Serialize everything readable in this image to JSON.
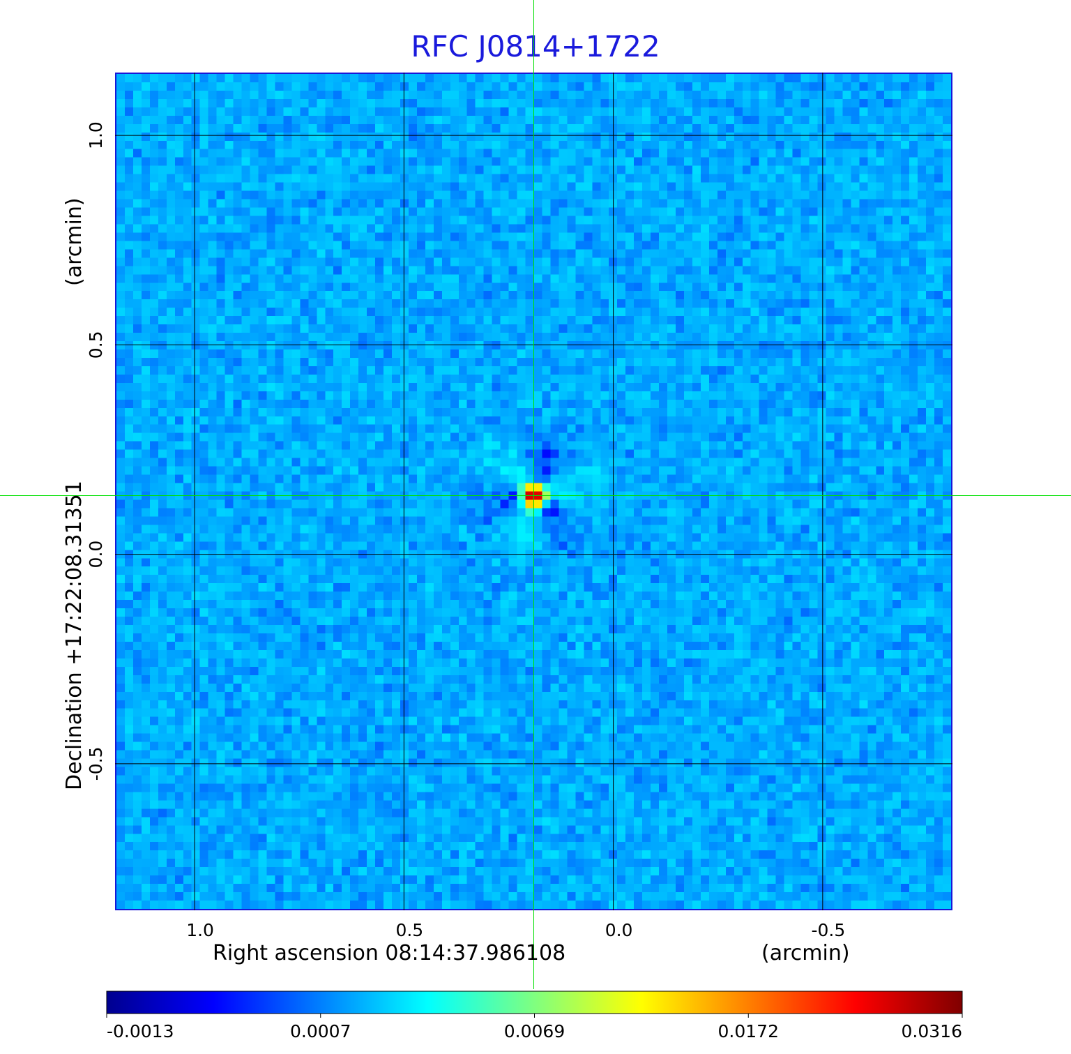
{
  "title": "RFC J0814+1722",
  "colors": {
    "title": "#1a1adc",
    "frame": "#1717d8",
    "grid": "#000000",
    "crosshair": "#00e000"
  },
  "colormap": "jet",
  "chart_data": {
    "type": "heatmap",
    "title": "RFC J0814+1722",
    "xlabel": "Right ascension  08:14:37.986108",
    "xunit": "(arcmin)",
    "ylabel": "Declination  +17:22:08.31351",
    "yunit": "(arcmin)",
    "x_range": [
      1.19,
      -0.81
    ],
    "y_range": [
      -0.85,
      1.15
    ],
    "x_ticks": [
      1.0,
      0.5,
      0.0,
      -0.5
    ],
    "x_tick_labels": [
      "1.0",
      "0.5",
      "0.0",
      "-0.5"
    ],
    "y_ticks": [
      1.0,
      0.5,
      0.0,
      -0.5
    ],
    "y_tick_labels": [
      "1.0",
      "0.5",
      "0.0",
      "-0.5"
    ],
    "grid": true,
    "source_peak": {
      "x": 0.19,
      "y": 0.14,
      "value": 0.0316
    },
    "crosshair": {
      "x": 0.19,
      "y": 0.14
    },
    "colorbar": {
      "min": -0.0013,
      "max": 0.0316,
      "ticks": [
        -0.0013,
        0.0007,
        0.0069,
        0.0172,
        0.0316
      ],
      "tick_labels": [
        "-0.0013",
        "0.0007",
        "0.0069",
        "0.0172",
        "0.0316"
      ]
    },
    "grid_cells": 100,
    "noise_level": 0.0005
  }
}
